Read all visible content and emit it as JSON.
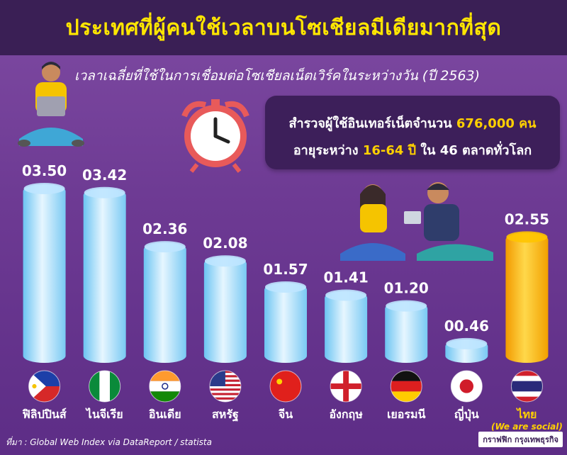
{
  "header": {
    "title": "ประเทศที่ผู้คนใช้เวลาบนโซเชียลมีเดียมากที่สุด",
    "subtitle": "เวลาเฉลี่ยที่ใช้ในการเชื่อมต่อโซเชียลเน็ตเวิร์คในระหว่างวัน (ปี 2563)"
  },
  "info": {
    "line1_prefix": "สำรวจผู้ใช้อินเทอร์เน็ตจำนวน",
    "line1_highlight": "676,000 คน",
    "line2_prefix": "อายุระหว่าง",
    "line2_highlight": "16-64 ปี",
    "line2_suffix": "ใน 46 ตลาดทั่วโลก"
  },
  "chart_data": {
    "type": "bar",
    "categories": [
      "ฟิลิปปินส์",
      "ไนจีเรีย",
      "อินเดีย",
      "สหรัฐ",
      "จีน",
      "อังกฤษ",
      "เยอรมนี",
      "ญี่ปุ่น",
      "ไทย"
    ],
    "values": [
      3.5,
      3.42,
      2.36,
      2.08,
      1.57,
      1.41,
      1.2,
      0.46,
      2.55
    ],
    "value_labels": [
      "03.50",
      "03.42",
      "02.36",
      "02.08",
      "01.57",
      "01.41",
      "01.20",
      "00.46",
      "02.55"
    ],
    "highlight_index": 8,
    "highlight_note": "(We are social)",
    "colors": {
      "normal": "#bfe6ff",
      "normal_dark": "#6cc4f2",
      "highlight": "#ffc400",
      "highlight_dark": "#f29a00"
    },
    "flags": [
      "philippines-flag",
      "nigeria-flag",
      "india-flag",
      "usa-flag",
      "china-flag",
      "england-flag",
      "germany-flag",
      "japan-flag",
      "thailand-flag"
    ]
  },
  "footer": {
    "source": "ที่มา : Global Web Index via DataReport / statista",
    "credit": "กราฟฟิก กรุงเทพธุรกิจ"
  }
}
